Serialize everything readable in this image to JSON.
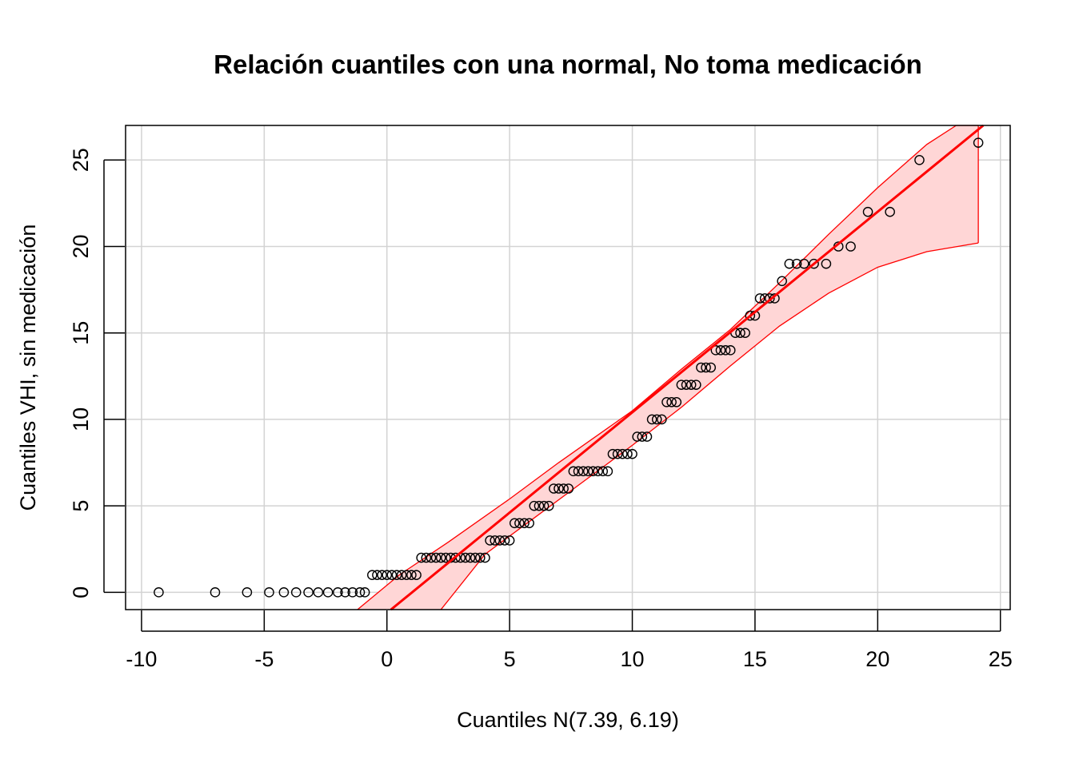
{
  "chart_data": {
    "type": "scatter",
    "title": "Relación cuantiles con una normal, No toma medicación",
    "xlabel": "Cuantiles N(7.39, 6.19)",
    "ylabel": "Cuantiles VHI, sin medicación",
    "xlim": [
      -10.65,
      25.4
    ],
    "ylim": [
      -1.0,
      27.0
    ],
    "x_ticks": [
      -10,
      -5,
      0,
      5,
      10,
      15,
      20,
      25
    ],
    "x_tick_labels": [
      "-10",
      "-5",
      "0",
      "5",
      "10",
      "15",
      "20",
      "25"
    ],
    "y_ticks": [
      0,
      5,
      10,
      15,
      20,
      25
    ],
    "y_tick_labels": [
      "0",
      "5",
      "10",
      "15",
      "20",
      "25"
    ],
    "grid": true,
    "colors": {
      "line": "#ff0000",
      "band_fill": "#ffd6d6",
      "band_edge": "#ff0000",
      "points": "#000000",
      "grid": "#d3d3d3"
    },
    "reference_line": {
      "intercept": -1.19,
      "slope": 1.16
    },
    "confidence_band": {
      "upper": [
        [
          -1.2,
          -1.0
        ],
        [
          0.5,
          1.0
        ],
        [
          2.5,
          2.9
        ],
        [
          5,
          5.4
        ],
        [
          7,
          7.5
        ],
        [
          10,
          10.5
        ],
        [
          12,
          12.9
        ],
        [
          14,
          15.2
        ],
        [
          16,
          17.9
        ],
        [
          18,
          20.7
        ],
        [
          20,
          23.4
        ],
        [
          22,
          25.9
        ],
        [
          23.2,
          27.0
        ]
      ],
      "lower": [
        [
          2.2,
          -1.0
        ],
        [
          4,
          2.2
        ],
        [
          6,
          4.3
        ],
        [
          8,
          6.4
        ],
        [
          10,
          8.5
        ],
        [
          12,
          10.7
        ],
        [
          14,
          13.1
        ],
        [
          16,
          15.4
        ],
        [
          18,
          17.3
        ],
        [
          20,
          18.8
        ],
        [
          22,
          19.7
        ],
        [
          24.1,
          20.2
        ]
      ],
      "end_x": 24.1
    },
    "points": {
      "x": [
        -9.3,
        -7.0,
        -5.7,
        -4.8,
        -4.2,
        -3.7,
        -3.2,
        -2.8,
        -2.4,
        -2.0,
        -1.7,
        -1.4,
        -1.1,
        -0.9,
        -0.6,
        -0.4,
        -0.2,
        0.0,
        0.2,
        0.4,
        0.6,
        0.8,
        1.0,
        1.2,
        1.4,
        1.6,
        1.8,
        2.0,
        2.2,
        2.4,
        2.6,
        2.8,
        3.0,
        3.2,
        3.4,
        3.6,
        3.8,
        4.0,
        4.2,
        4.4,
        4.6,
        4.8,
        5.0,
        5.2,
        5.4,
        5.6,
        5.8,
        6.0,
        6.2,
        6.4,
        6.6,
        6.8,
        7.0,
        7.2,
        7.4,
        7.6,
        7.8,
        8.0,
        8.2,
        8.4,
        8.6,
        8.8,
        9.0,
        9.2,
        9.4,
        9.6,
        9.8,
        10.0,
        10.2,
        10.4,
        10.6,
        10.8,
        11.0,
        11.2,
        11.4,
        11.6,
        11.8,
        12.0,
        12.2,
        12.4,
        12.6,
        12.8,
        13.0,
        13.2,
        13.4,
        13.6,
        13.8,
        14.0,
        14.2,
        14.4,
        14.6,
        14.8,
        15.0,
        15.2,
        15.4,
        15.6,
        15.8,
        16.1,
        16.4,
        16.7,
        17.0,
        17.4,
        17.9,
        18.4,
        18.9,
        19.6,
        20.5,
        21.7,
        24.1
      ],
      "y": [
        0,
        0,
        0,
        0,
        0,
        0,
        0,
        0,
        0,
        0,
        0,
        0,
        0,
        0,
        1,
        1,
        1,
        1,
        1,
        1,
        1,
        1,
        1,
        1,
        2,
        2,
        2,
        2,
        2,
        2,
        2,
        2,
        2,
        2,
        2,
        2,
        2,
        2,
        3,
        3,
        3,
        3,
        3,
        4,
        4,
        4,
        4,
        5,
        5,
        5,
        5,
        6,
        6,
        6,
        6,
        7,
        7,
        7,
        7,
        7,
        7,
        7,
        7,
        8,
        8,
        8,
        8,
        8,
        9,
        9,
        9,
        10,
        10,
        10,
        11,
        11,
        11,
        12,
        12,
        12,
        12,
        13,
        13,
        13,
        14,
        14,
        14,
        14,
        15,
        15,
        15,
        16,
        16,
        17,
        17,
        17,
        17,
        18,
        19,
        19,
        19,
        19,
        19,
        20,
        20,
        22,
        22,
        25,
        26
      ]
    }
  }
}
